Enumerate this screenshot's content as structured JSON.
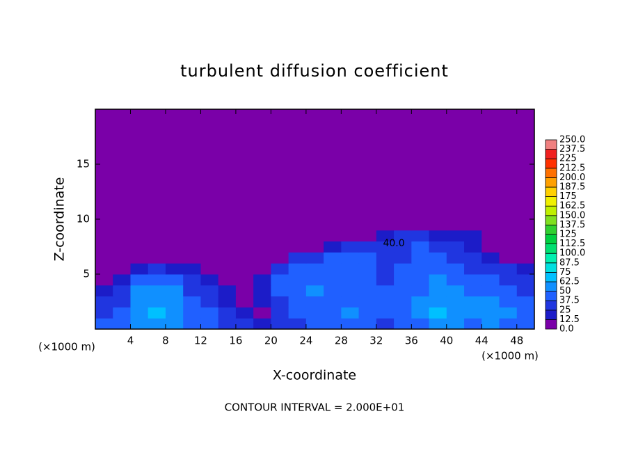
{
  "chart_data": {
    "type": "heatmap",
    "title": "turbulent diffusion coefficient",
    "x_label": "X-coordinate",
    "y_label": "Z-coordinate",
    "unit_label": "(×1000 m)",
    "annotation": "CONTOUR INTERVAL = 2.000E+01",
    "xlim": [
      0,
      50
    ],
    "ylim": [
      0,
      20
    ],
    "xticks": [
      4,
      8,
      12,
      16,
      20,
      24,
      28,
      32,
      36,
      40,
      44,
      48
    ],
    "yticks": [
      5,
      10,
      15
    ],
    "x": [
      1,
      3,
      5,
      7,
      9,
      11,
      13,
      15,
      17,
      19,
      21,
      23,
      25,
      27,
      29,
      31,
      33,
      35,
      37,
      39,
      41,
      43,
      45,
      47,
      49
    ],
    "z": [
      0.5,
      1.5,
      2.5,
      3.5,
      4.5,
      5.5,
      6.5,
      7.5,
      8.5,
      9.5
    ],
    "values": [
      [
        40,
        45,
        55,
        60,
        50,
        40,
        45,
        30,
        25,
        20,
        30,
        35,
        40,
        40,
        45,
        40,
        35,
        40,
        45,
        60,
        55,
        45,
        50,
        45,
        40
      ],
      [
        35,
        40,
        60,
        65,
        55,
        45,
        40,
        25,
        15,
        10,
        30,
        40,
        45,
        45,
        50,
        45,
        40,
        45,
        50,
        65,
        60,
        50,
        55,
        50,
        45
      ],
      [
        30,
        35,
        55,
        60,
        50,
        40,
        30,
        20,
        10,
        15,
        35,
        45,
        45,
        40,
        45,
        45,
        45,
        40,
        50,
        60,
        55,
        50,
        50,
        45,
        40
      ],
      [
        20,
        30,
        50,
        55,
        50,
        35,
        25,
        15,
        5,
        20,
        40,
        45,
        50,
        45,
        45,
        45,
        40,
        40,
        45,
        55,
        50,
        45,
        45,
        40,
        35
      ],
      [
        10,
        20,
        40,
        45,
        40,
        30,
        20,
        10,
        0,
        20,
        40,
        45,
        45,
        45,
        40,
        40,
        35,
        40,
        45,
        50,
        45,
        40,
        40,
        35,
        30
      ],
      [
        5,
        10,
        20,
        25,
        20,
        15,
        10,
        5,
        0,
        10,
        35,
        40,
        40,
        40,
        40,
        40,
        35,
        40,
        40,
        45,
        40,
        35,
        30,
        25,
        20
      ],
      [
        0,
        0,
        5,
        5,
        5,
        5,
        0,
        0,
        0,
        0,
        10,
        25,
        35,
        40,
        40,
        40,
        35,
        35,
        40,
        40,
        35,
        30,
        20,
        10,
        5
      ],
      [
        0,
        0,
        0,
        0,
        0,
        0,
        0,
        0,
        0,
        0,
        0,
        0,
        5,
        15,
        25,
        30,
        35,
        35,
        40,
        35,
        30,
        20,
        10,
        0,
        0
      ],
      [
        0,
        0,
        0,
        0,
        0,
        0,
        0,
        0,
        0,
        0,
        0,
        0,
        0,
        0,
        0,
        5,
        20,
        30,
        25,
        20,
        20,
        15,
        5,
        0,
        0
      ],
      [
        0,
        0,
        0,
        0,
        0,
        0,
        0,
        0,
        0,
        0,
        0,
        0,
        0,
        0,
        0,
        0,
        0,
        0,
        0,
        5,
        5,
        5,
        0,
        0,
        0
      ]
    ],
    "contour_labels": [
      {
        "text": "40.0",
        "x": 34,
        "z": 7.8
      }
    ],
    "colorbar_ticks": [
      {
        "value": 0,
        "label": "0.0"
      },
      12.5,
      25,
      37.5,
      50,
      62.5,
      75,
      87.5,
      {
        "value": 100,
        "label": "100.0"
      },
      112.5,
      125,
      137.5,
      {
        "value": 150,
        "label": "150.0"
      },
      162.5,
      175,
      187.5,
      {
        "value": 200,
        "label": "200.0"
      },
      212.5,
      225,
      237.5,
      {
        "value": 250,
        "label": "250.0"
      }
    ],
    "colorbar_colors": [
      "#7a00a8",
      "#1c1cc8",
      "#2036e0",
      "#2060ff",
      "#1090ff",
      "#00c0ff",
      "#00e0e0",
      "#00f0b0",
      "#00e070",
      "#00d040",
      "#30d030",
      "#80e020",
      "#c0f000",
      "#f0f000",
      "#ffd000",
      "#ffa000",
      "#ff7000",
      "#ff3000",
      "#f02020",
      "#f08080"
    ]
  }
}
